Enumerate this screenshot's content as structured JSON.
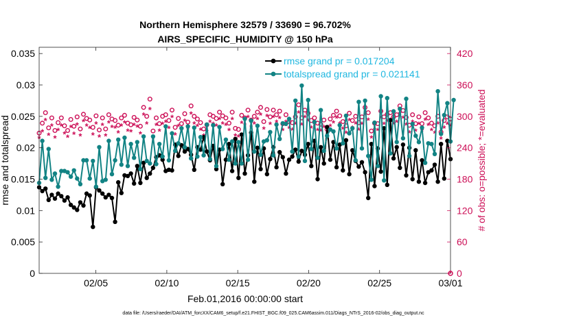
{
  "chart_data": {
    "type": "line",
    "title": "Northern Hemisphere 32579 / 33690 = 96.702%",
    "subtitle": "AIRS_SPECIFIC_HUMIDITY @ 150 hPa",
    "xlabel": "Feb.01,2016 00:00:00 start",
    "ylabel": "rmse and totalspread",
    "ylabel_right": "# of obs: o=possible; *=evaluated",
    "footnote": "data file: /Users/raeder/DAI/ATM_forcXX/CAM6_setup/f.e21.FHIST_BGC.f09_025.CAM6assim.011/Diags_NTrS_2016-02/obs_diag_output.nc",
    "xlim": [
      1,
      30
    ],
    "ylim": [
      0,
      0.036
    ],
    "ylim_right": [
      0,
      432
    ],
    "x_ticks": [
      5,
      10,
      15,
      20,
      25,
      30
    ],
    "x_tick_labels": [
      "02/05",
      "02/10",
      "02/15",
      "02/20",
      "02/25",
      "03/01"
    ],
    "y_ticks": [
      0,
      0.005,
      0.01,
      0.015,
      0.02,
      0.025,
      0.03,
      0.035
    ],
    "y_tick_labels": [
      "0",
      "0.005",
      "0.01",
      "0.015",
      "0.02",
      "0.025",
      "0.03",
      "0.035"
    ],
    "y_right_ticks": [
      0,
      60,
      120,
      180,
      240,
      300,
      360,
      420
    ],
    "y_right_tick_labels": [
      "0",
      "60",
      "120",
      "180",
      "240",
      "300",
      "360",
      "420"
    ],
    "series": [
      {
        "name": "rmse grand pr = 0.017204",
        "color": "#000000",
        "values": [
          0.0137,
          0.0131,
          0.0135,
          0.0117,
          0.0125,
          0.0119,
          0.0127,
          0.0123,
          0.0116,
          0.0121,
          0.0109,
          0.0105,
          0.0101,
          0.0113,
          0.0108,
          0.0127,
          0.0124,
          0.0074,
          0.0137,
          0.0132,
          0.0127,
          0.0121,
          0.0125,
          0.012,
          0.0082,
          0.0145,
          0.0128,
          0.0156,
          0.0155,
          0.0159,
          0.0143,
          0.0171,
          0.0144,
          0.0176,
          0.0152,
          0.0159,
          0.0168,
          0.0185,
          0.0188,
          0.0181,
          0.0163,
          0.0165,
          0.0164,
          0.0205,
          0.0187,
          0.0204,
          0.0194,
          0.0198,
          0.0189,
          0.0165,
          0.0201,
          0.0197,
          0.0217,
          0.0194,
          0.018,
          0.0203,
          0.0166,
          0.0197,
          0.0142,
          0.0181,
          0.0206,
          0.0163,
          0.0214,
          0.0152,
          0.0221,
          0.0159,
          0.0188,
          0.0224,
          0.0146,
          0.02,
          0.0166,
          0.0199,
          0.0158,
          0.0182,
          0.0201,
          0.0169,
          0.0193,
          0.0185,
          0.0159,
          0.0181,
          0.0186,
          0.0197,
          0.0178,
          0.0195,
          0.0189,
          0.0206,
          0.0171,
          0.0211,
          0.015,
          0.0201,
          0.0175,
          0.0233,
          0.0181,
          0.0209,
          0.0169,
          0.0205,
          0.0164,
          0.0212,
          0.0158,
          0.0196,
          0.0179,
          0.017,
          0.0177,
          0.0161,
          0.012,
          0.0206,
          0.0139,
          0.0199,
          0.0162,
          0.0231,
          0.0141,
          0.0244,
          0.0183,
          0.0201,
          0.0168,
          0.0205,
          0.0156,
          0.02,
          0.015,
          0.0196,
          0.0146,
          0.018,
          0.0144,
          0.0161,
          0.0164,
          0.0173,
          0.0146,
          0.0206,
          0.0151,
          0.0211,
          0.0182
        ]
      },
      {
        "name": "totalspread grand pr = 0.021141",
        "color": "#128384",
        "values": [
          0.0144,
          0.0211,
          0.0152,
          0.0198,
          0.0149,
          0.0159,
          0.0138,
          0.0163,
          0.0163,
          0.0161,
          0.0154,
          0.0164,
          0.0151,
          0.0142,
          0.018,
          0.018,
          0.0151,
          0.0179,
          0.0138,
          0.0201,
          0.0147,
          0.0149,
          0.0211,
          0.0158,
          0.018,
          0.0213,
          0.0173,
          0.0216,
          0.0171,
          0.0206,
          0.0184,
          0.0209,
          0.0166,
          0.0218,
          0.0179,
          0.0175,
          0.0218,
          0.0174,
          0.0206,
          0.0186,
          0.0234,
          0.018,
          0.0223,
          0.0195,
          0.0207,
          0.0231,
          0.0201,
          0.0234,
          0.0183,
          0.0232,
          0.0186,
          0.0217,
          0.0188,
          0.0237,
          0.0182,
          0.0236,
          0.0171,
          0.0233,
          0.0198,
          0.0213,
          0.0181,
          0.021,
          0.0175,
          0.0209,
          0.0175,
          0.0246,
          0.0181,
          0.0243,
          0.0194,
          0.0235,
          0.0189,
          0.021,
          0.0212,
          0.0225,
          0.0188,
          0.0237,
          0.0214,
          0.0239,
          0.0238,
          0.0246,
          0.0194,
          0.0275,
          0.0186,
          0.0299,
          0.0179,
          0.0276,
          0.0198,
          0.0241,
          0.0184,
          0.026,
          0.0195,
          0.0219,
          0.0229,
          0.0226,
          0.0199,
          0.0236,
          0.0207,
          0.0251,
          0.0223,
          0.0231,
          0.018,
          0.0273,
          0.0199,
          0.0275,
          0.0187,
          0.0149,
          0.024,
          0.0171,
          0.0282,
          0.0148,
          0.0279,
          0.0191,
          0.0258,
          0.0209,
          0.0262,
          0.0215,
          0.0278,
          0.0187,
          0.0238,
          0.0219,
          0.0209,
          0.0232,
          0.0176,
          0.0207,
          0.0206,
          0.019,
          0.029,
          0.0222,
          0.0252,
          0.0271,
          0.021,
          0.0276
        ]
      }
    ],
    "obs_series": [
      {
        "name": "possible",
        "marker": "o",
        "color": "#cc0e56",
        "values": [
          268,
          287,
          307,
          278,
          297,
          273,
          288,
          297,
          282,
          273,
          294,
          281,
          299,
          276,
          304,
          296,
          293,
          279,
          301,
          274,
          297,
          276,
          303,
          295,
          292,
          283,
          297,
          302,
          287,
          284,
          298,
          293,
          281,
          317,
          300,
          333,
          272,
          297,
          286,
          300,
          303,
          292,
          312,
          279,
          296,
          286,
          305,
          289,
          320,
          300,
          295,
          288,
          276,
          284,
          303,
          300,
          296,
          308,
          301,
          297,
          287,
          308,
          277,
          275,
          302,
          297,
          312,
          293,
          300,
          308,
          317,
          290,
          313,
          299,
          312,
          303,
          310,
          286,
          303,
          290,
          288,
          299,
          322,
          297,
          312,
          306,
          292,
          297,
          287,
          285,
          293,
          275,
          295,
          302,
          310,
          301,
          290,
          282,
          306,
          292,
          300,
          288,
          299,
          317,
          307,
          272,
          287,
          286,
          310,
          299,
          304,
          307,
          299,
          303,
          320,
          311,
          298,
          283,
          303,
          286,
          299,
          286,
          307,
          297,
          287,
          282,
          300,
          270,
          292,
          299,
          295
        ]
      },
      {
        "name": "evaluated",
        "marker": "*",
        "color": "#cc0e56",
        "values": [
          257,
          270,
          291,
          263,
          281,
          258,
          272,
          281,
          266,
          259,
          278,
          265,
          283,
          262,
          289,
          281,
          276,
          264,
          285,
          260,
          282,
          262,
          287,
          278,
          277,
          268,
          281,
          287,
          271,
          270,
          282,
          279,
          266,
          302,
          285,
          312,
          257,
          282,
          271,
          284,
          288,
          276,
          297,
          264,
          280,
          272,
          290,
          274,
          304,
          285,
          280,
          273,
          262,
          270,
          288,
          284,
          281,
          293,
          285,
          282,
          272,
          293,
          262,
          260,
          286,
          282,
          297,
          278,
          285,
          293,
          302,
          275,
          299,
          284,
          297,
          288,
          295,
          272,
          288,
          276,
          273,
          284,
          306,
          283,
          297,
          290,
          277,
          283,
          272,
          271,
          278,
          261,
          280,
          287,
          296,
          285,
          275,
          267,
          291,
          277,
          285,
          273,
          284,
          302,
          292,
          258,
          273,
          272,
          295,
          284,
          289,
          292,
          284,
          288,
          304,
          296,
          283,
          268,
          288,
          271,
          284,
          271,
          292,
          282,
          272,
          267,
          285,
          256,
          277,
          284,
          281
        ]
      }
    ]
  }
}
